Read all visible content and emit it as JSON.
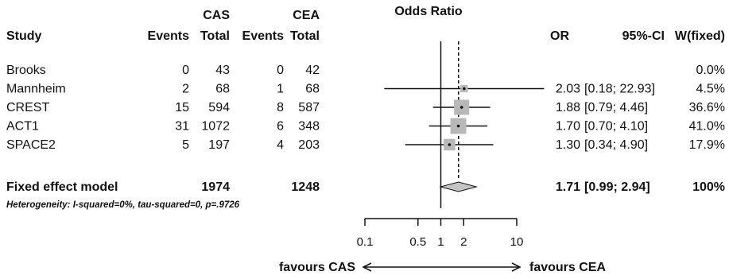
{
  "chart_data": {
    "type": "forest",
    "title": "Odds Ratio",
    "group_headers": {
      "cas": "CAS",
      "cea": "CEA"
    },
    "columns": {
      "study": "Study",
      "events": "Events",
      "total": "Total",
      "or": "OR",
      "ci": "95%-CI",
      "weight": "W(fixed)"
    },
    "studies": [
      {
        "name": "Brooks",
        "cas_events": "0",
        "cas_total": "43",
        "cea_events": "0",
        "cea_total": "42",
        "or": null,
        "lo": null,
        "hi": null,
        "or_text": "",
        "ci_text": "",
        "weight_text": "0.0%",
        "weight": 0.0
      },
      {
        "name": "Mannheim",
        "cas_events": "2",
        "cas_total": "68",
        "cea_events": "1",
        "cea_total": "68",
        "or": 2.03,
        "lo": 0.18,
        "hi": 22.93,
        "or_text": "2.03",
        "ci_text": "[0.18; 22.93]",
        "weight_text": "4.5%",
        "weight": 4.5
      },
      {
        "name": "CREST",
        "cas_events": "15",
        "cas_total": "594",
        "cea_events": "8",
        "cea_total": "587",
        "or": 1.88,
        "lo": 0.79,
        "hi": 4.46,
        "or_text": "1.88",
        "ci_text": "[0.79; 4.46]",
        "weight_text": "36.6%",
        "weight": 36.6
      },
      {
        "name": "ACT1",
        "cas_events": "31",
        "cas_total": "1072",
        "cea_events": "6",
        "cea_total": "348",
        "or": 1.7,
        "lo": 0.7,
        "hi": 4.1,
        "or_text": "1.70",
        "ci_text": "[0.70; 4.10]",
        "weight_text": "41.0%",
        "weight": 41.0
      },
      {
        "name": "SPACE2",
        "cas_events": "5",
        "cas_total": "197",
        "cea_events": "4",
        "cea_total": "203",
        "or": 1.3,
        "lo": 0.34,
        "hi": 4.9,
        "or_text": "1.30",
        "ci_text": "[0.34; 4.90]",
        "weight_text": "17.9%",
        "weight": 17.9
      }
    ],
    "pooled": {
      "name": "Fixed effect model",
      "cas_total": "1974",
      "cea_total": "1248",
      "or": 1.71,
      "lo": 0.99,
      "hi": 2.94,
      "or_text": "1.71",
      "ci_text": "[0.99; 2.94]",
      "weight_text": "100%"
    },
    "heterogeneity": "Heterogeneity: I-squared=0%, tau-squared=0, p=.9726",
    "x_axis": {
      "scale": "log",
      "range": [
        0.1,
        10
      ],
      "ticks": [
        0.1,
        0.5,
        1,
        2,
        10
      ],
      "tick_labels": [
        "0.1",
        "0.5",
        "1",
        "2",
        "10"
      ],
      "null_value": 1
    },
    "favours_left": "favours CAS",
    "favours_right": "favours CEA"
  }
}
